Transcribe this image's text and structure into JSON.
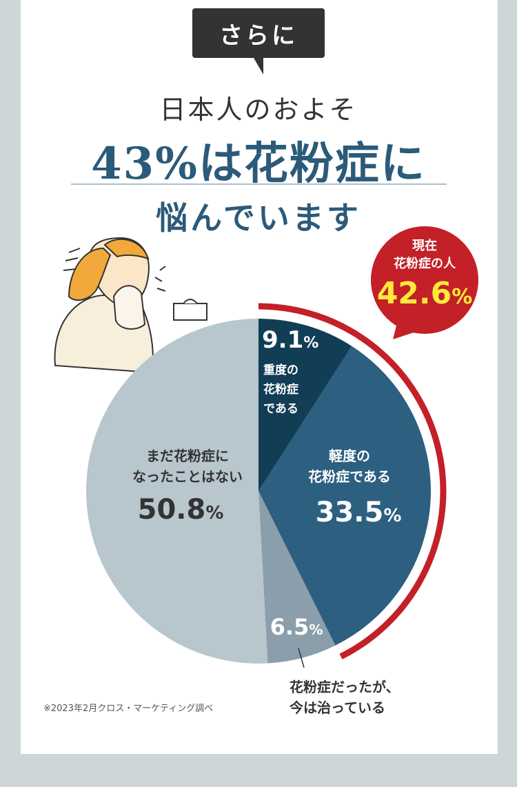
{
  "header": {
    "tag": "さらに",
    "line1": "日本人のおよそ",
    "line2": "43%は花粉症に",
    "line3": "悩んでいます"
  },
  "callout": {
    "line1": "現在",
    "line2": "花粉症の人",
    "value": "42.6",
    "unit": "%"
  },
  "chart_data": {
    "type": "pie",
    "slices": [
      {
        "value": 9.1,
        "label_lines": [
          "重度の",
          "花粉症",
          "である"
        ],
        "value_text": "9.1",
        "unit": "%",
        "color": "#123e55"
      },
      {
        "value": 33.5,
        "label_lines": [
          "軽度の",
          "花粉症である"
        ],
        "value_text": "33.5",
        "unit": "%",
        "color": "#2c5f80"
      },
      {
        "value": 6.5,
        "label_lines": [
          "花粉症だったが、",
          "今は治っている"
        ],
        "value_text": "6.5",
        "unit": "%",
        "color": "#8a9eac"
      },
      {
        "value": 50.8,
        "label_lines": [
          "まだ花粉症に",
          "なったことはない"
        ],
        "value_text": "50.8",
        "unit": "%",
        "color": "#b8c6ce"
      }
    ],
    "highlight_color": "#c32027"
  },
  "footnote": "※2023年2月クロス・マーケティング調べ"
}
